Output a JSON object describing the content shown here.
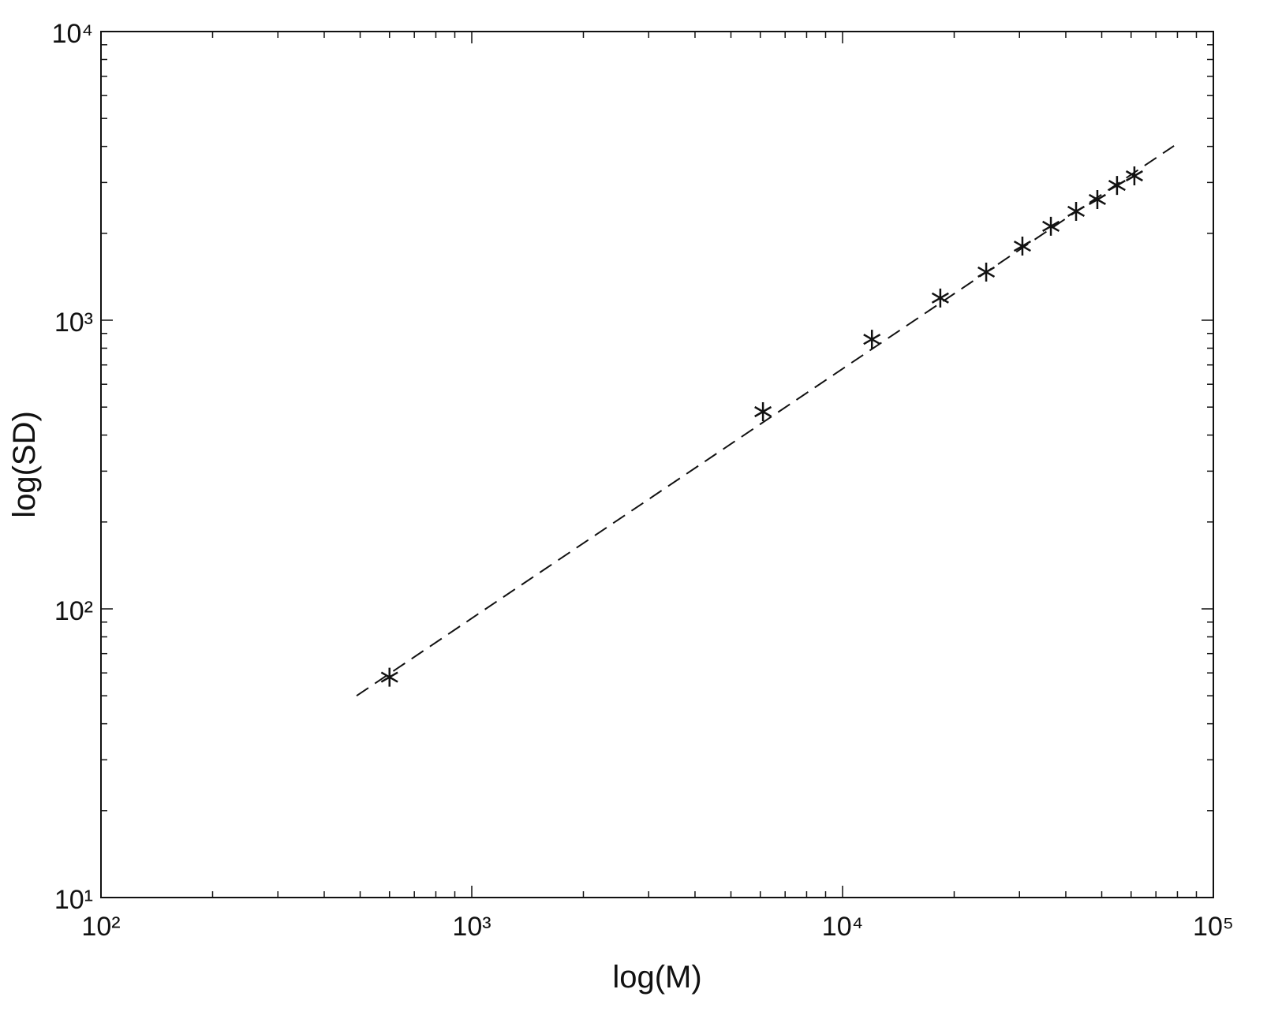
{
  "chart_data": {
    "type": "scatter",
    "x_label": "log(M)",
    "y_label": "log(SD)",
    "xscale": "log",
    "yscale": "log",
    "xlim": [
      100,
      100000
    ],
    "ylim": [
      10,
      10000
    ],
    "xticks": [
      {
        "value": 100,
        "label": "10²"
      },
      {
        "value": 1000,
        "label": "10³"
      },
      {
        "value": 10000,
        "label": "10⁴"
      },
      {
        "value": 100000,
        "label": "10⁵"
      }
    ],
    "yticks": [
      {
        "value": 10,
        "label": "10¹"
      },
      {
        "value": 100,
        "label": "10²"
      },
      {
        "value": 1000,
        "label": "10³"
      },
      {
        "value": 10000,
        "label": "10⁴"
      }
    ],
    "xminorticks": [
      200,
      300,
      400,
      500,
      600,
      700,
      800,
      900,
      2000,
      3000,
      4000,
      5000,
      6000,
      7000,
      8000,
      9000,
      20000,
      30000,
      40000,
      50000,
      60000,
      70000,
      80000,
      90000
    ],
    "yminorticks": [
      20,
      30,
      40,
      50,
      60,
      70,
      80,
      90,
      200,
      300,
      400,
      500,
      600,
      700,
      800,
      900,
      2000,
      3000,
      4000,
      5000,
      6000,
      7000,
      8000,
      9000
    ],
    "color": "#111111",
    "marker": "asterisk",
    "x": [
      600,
      6100,
      12000,
      18350,
      24400,
      30550,
      36460,
      42640,
      48660,
      54980,
      61240
    ],
    "values": [
      58,
      482,
      859,
      1194,
      1468,
      1806,
      2115,
      2383,
      2619,
      2931,
      3162
    ],
    "fit_line": {
      "style": "dashed",
      "x": [
        489,
        78300
      ],
      "values": [
        50,
        4018
      ]
    }
  }
}
